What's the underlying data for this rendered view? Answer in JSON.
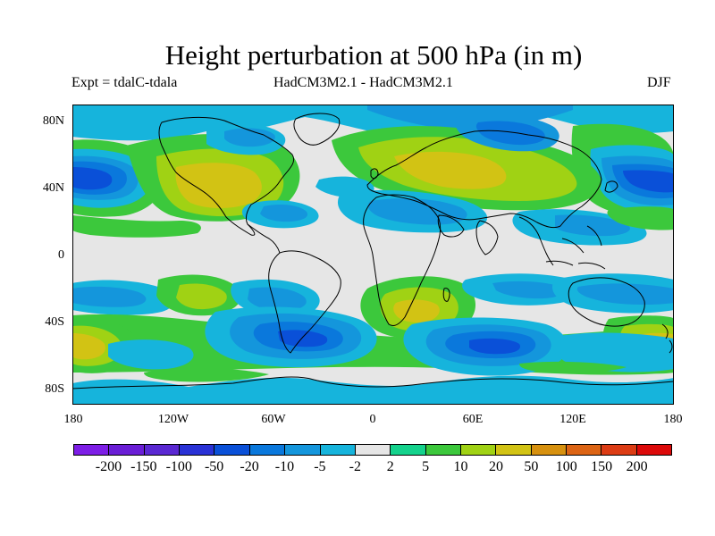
{
  "title": "Height perturbation at 500 hPa (in m)",
  "subtitle_left": "Expt = tdalC-tdala",
  "subtitle_center": "HadCM3M2.1 - HadCM3M2.1",
  "subtitle_right": "DJF",
  "lat_labels": [
    "80N",
    "40N",
    "0",
    "40S",
    "80S"
  ],
  "lon_labels": [
    "180",
    "120W",
    "60W",
    "0",
    "60E",
    "120E",
    "180"
  ],
  "colorbar_labels": [
    "-200",
    "-150",
    "-100",
    "-50",
    "-20",
    "-10",
    "-5",
    "-2",
    "2",
    "5",
    "10",
    "20",
    "50",
    "100",
    "150",
    "200"
  ],
  "colors": {
    "palette": [
      "#7d1ee6",
      "#6a1ed6",
      "#5a28d2",
      "#2a32d6",
      "#0a50d8",
      "#0a78dc",
      "#1496dc",
      "#16b4dc",
      "#e6e6e6",
      "#14d28c",
      "#3cc83c",
      "#a0d214",
      "#d2c314",
      "#d7910f",
      "#dc6414",
      "#dc3c14",
      "#dc0a0a"
    ],
    "land_outline": "#000000",
    "background": "#ffffff"
  }
}
